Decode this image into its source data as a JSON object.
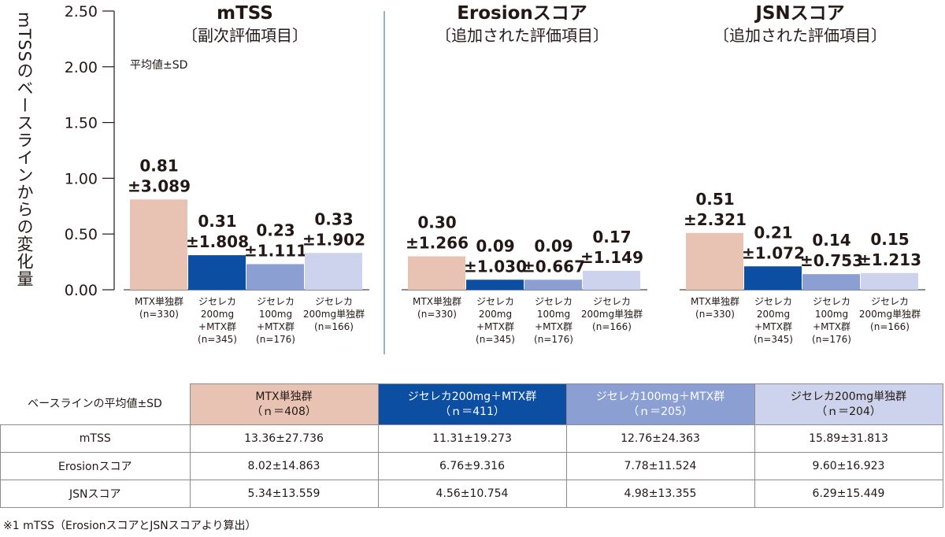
{
  "chart_data": {
    "type": "bar",
    "ylabel": "mTSSのベースラインからの変化量",
    "ylim": [
      0,
      2.5
    ],
    "yticks": [
      "0.00",
      "0.50",
      "1.00",
      "1.50",
      "2.00",
      "2.50"
    ],
    "annotation": "平均値±SD",
    "categories": [
      "MTX単独群\n(n=330)",
      "ジセレカ\n200mg\n+MTX群\n(n=345)",
      "ジセレカ\n100mg\n+MTX群\n(n=176)",
      "ジセレカ\n200mg単独群\n(n=166)"
    ],
    "colors": [
      "#e8c3b3",
      "#0b4ea2",
      "#8b9fd2",
      "#cdd3ec"
    ],
    "panels": [
      {
        "title": "mTSS",
        "subtitle": "〔副次評価項目〕",
        "values": [
          0.81,
          0.31,
          0.23,
          0.33
        ],
        "labels": [
          "0.81",
          "0.31",
          "0.23",
          "0.33"
        ],
        "sd": [
          "±3.089",
          "±1.808",
          "±1.111",
          "±1.902"
        ]
      },
      {
        "title": "Erosionスコア",
        "subtitle": "〔追加された評価項目〕",
        "values": [
          0.3,
          0.09,
          0.09,
          0.17
        ],
        "labels": [
          "0.30",
          "0.09",
          "0.09",
          "0.17"
        ],
        "sd": [
          "±1.266",
          "±1.030",
          "±0.667",
          "±1.149"
        ]
      },
      {
        "title": "JSNスコア",
        "subtitle": "〔追加された評価項目〕",
        "values": [
          0.51,
          0.21,
          0.14,
          0.15
        ],
        "labels": [
          "0.51",
          "0.21",
          "0.14",
          "0.15"
        ],
        "sd": [
          "±2.321",
          "±1.072",
          "±0.753",
          "±1.213"
        ]
      }
    ]
  },
  "table": {
    "header_label": "ベースラインの平均値±SD",
    "groups": [
      {
        "name": "MTX単独群",
        "n": "（ｎ＝408）"
      },
      {
        "name": "ジセレカ200mg＋MTX群",
        "n": "（ｎ＝411）"
      },
      {
        "name": "ジセレカ100mg＋MTX群",
        "n": "（ｎ＝205）"
      },
      {
        "name": "ジセレカ200mg単独群",
        "n": "（ｎ＝204）"
      }
    ],
    "rows": [
      {
        "label": "mTSS",
        "cells": [
          "13.36±27.736",
          "11.31±19.273",
          "12.76±24.363",
          "15.89±31.813"
        ]
      },
      {
        "label": "Erosionスコア",
        "cells": [
          "8.02±14.863",
          "6.76±9.316",
          "7.78±11.524",
          "9.60±16.923"
        ]
      },
      {
        "label": "JSNスコア",
        "cells": [
          "5.34±13.559",
          "4.56±10.754",
          "4.98±13.355",
          "6.29±15.449"
        ]
      }
    ]
  },
  "footnote": "※1 mTSS（ErosionスコアとJSNスコアより算出）"
}
